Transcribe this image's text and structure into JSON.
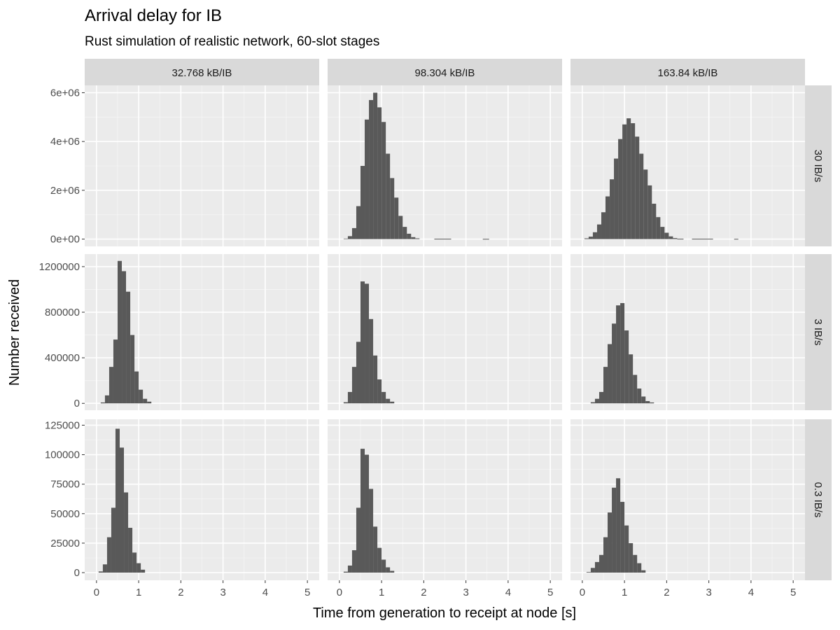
{
  "title": "Arrival delay for IB",
  "subtitle": "Rust simulation of realistic network, 60-slot stages",
  "chart_data": {
    "type": "bar",
    "facet_layout": "grid",
    "xlabel": "Time from generation to receipt at node [s]",
    "ylabel": "Number received",
    "xlim": [
      -0.28,
      5.28
    ],
    "x_ticks": [
      0,
      1,
      2,
      3,
      4,
      5
    ],
    "bin_width": 0.1,
    "bin_starts": [
      0.1,
      0.2,
      0.3,
      0.4,
      0.5,
      0.6,
      0.7,
      0.8,
      0.9,
      1.0,
      1.1,
      1.2,
      1.3,
      1.4,
      1.5,
      1.6,
      1.7,
      1.8
    ],
    "col_labels": [
      "32.768 kB/IB",
      "98.304 kB/IB",
      "163.84 kB/IB"
    ],
    "row_labels": [
      "30 IB/s",
      "3 IB/s",
      "0.3 IB/s"
    ],
    "grid": true,
    "rows": [
      {
        "label": "30 IB/s",
        "ylim": [
          -300000,
          6300000
        ],
        "y_ticks": [
          {
            "value": 0,
            "label": "0e+00"
          },
          {
            "value": 2000000,
            "label": "2e+06"
          },
          {
            "value": 4000000,
            "label": "4e+06"
          },
          {
            "value": 6000000,
            "label": "6e+06"
          }
        ],
        "panels": [
          {
            "series": "32.768 kB/IB",
            "values": []
          },
          {
            "series": "98.304 kB/IB",
            "values": [
              20000,
              120000,
              450000,
              1350000,
              3000000,
              4900000,
              5700000,
              6000000,
              5400000,
              4800000,
              3500000,
              2500000,
              1700000,
              950000,
              500000,
              220000,
              80000,
              30000
            ]
          },
          {
            "series": "163.84 kB/IB",
            "values": [
              30000,
              100000,
              280000,
              600000,
              1100000,
              1750000,
              2450000,
              3300000,
              4100000,
              4700000,
              4950000,
              4750000,
              4200000,
              3500000,
              2850000,
              2200000,
              1450000,
              900000,
              500000,
              260000,
              110000,
              40000
            ]
          }
        ]
      },
      {
        "label": "3 IB/s",
        "ylim": [
          -60000,
          1310000
        ],
        "y_ticks": [
          {
            "value": 0,
            "label": "0"
          },
          {
            "value": 400000,
            "label": "400000"
          },
          {
            "value": 800000,
            "label": "800000"
          },
          {
            "value": 1200000,
            "label": "1200000"
          }
        ],
        "panels": [
          {
            "series": "32.768 kB/IB",
            "values": [
              8000,
              70000,
              320000,
              560000,
              1250000,
              1160000,
              980000,
              600000,
              280000,
              120000,
              40000,
              15000
            ]
          },
          {
            "series": "98.304 kB/IB",
            "values": [
              10000,
              100000,
              320000,
              540000,
              1070000,
              1050000,
              740000,
              420000,
              210000,
              100000,
              40000,
              15000
            ]
          },
          {
            "series": "163.84 kB/IB",
            "values": [
              10000,
              40000,
              100000,
              320000,
              520000,
              700000,
              860000,
              880000,
              640000,
              430000,
              250000,
              130000,
              60000,
              20000,
              8000
            ]
          }
        ]
      },
      {
        "label": "0.3 IB/s",
        "ylim": [
          -6500,
          130000
        ],
        "y_ticks": [
          {
            "value": 0,
            "label": "0"
          },
          {
            "value": 25000,
            "label": "25000"
          },
          {
            "value": 50000,
            "label": "50000"
          },
          {
            "value": 75000,
            "label": "75000"
          },
          {
            "value": 100000,
            "label": "100000"
          },
          {
            "value": 125000,
            "label": "125000"
          }
        ],
        "panels": [
          {
            "series": "32.768 kB/IB",
            "values": [
              1000,
              7000,
              30000,
              55000,
              122000,
              106000,
              68000,
              38000,
              17000,
              8000,
              2500
            ]
          },
          {
            "series": "98.304 kB/IB",
            "values": [
              800,
              6000,
              19000,
              55000,
              105000,
              100000,
              71000,
              39000,
              21000,
              11000,
              4500,
              1500
            ]
          },
          {
            "series": "163.84 kB/IB",
            "values": [
              500,
              4000,
              9000,
              15000,
              30000,
              51000,
              72000,
              80000,
              60000,
              40000,
              25000,
              15000,
              8000,
              2000
            ]
          }
        ]
      }
    ],
    "row_bin_offsets": [
      [
        0,
        0.05,
        -0.0
      ],
      [
        0.05,
        0.05,
        0.15
      ],
      [
        0.0,
        0.05,
        0.05
      ]
    ],
    "sparse_tails": {
      "98.304 kB/IB|30 IB/s": [
        {
          "x": 2.25,
          "w": 0.4,
          "v": 15000
        },
        {
          "x": 3.4,
          "w": 0.15,
          "v": 10000
        }
      ],
      "163.84 kB/IB|30 IB/s": [
        {
          "x": 2.25,
          "w": 0.15,
          "v": 15000
        },
        {
          "x": 2.6,
          "w": 0.5,
          "v": 15000
        },
        {
          "x": 3.6,
          "w": 0.1,
          "v": 10000
        }
      ]
    },
    "colors": {
      "bar": "#595959",
      "panel": "#ebebeb",
      "gridMajor": "#ffffff",
      "gridMinor": "#f5f5f5",
      "strip": "#d9d9d9"
    }
  }
}
